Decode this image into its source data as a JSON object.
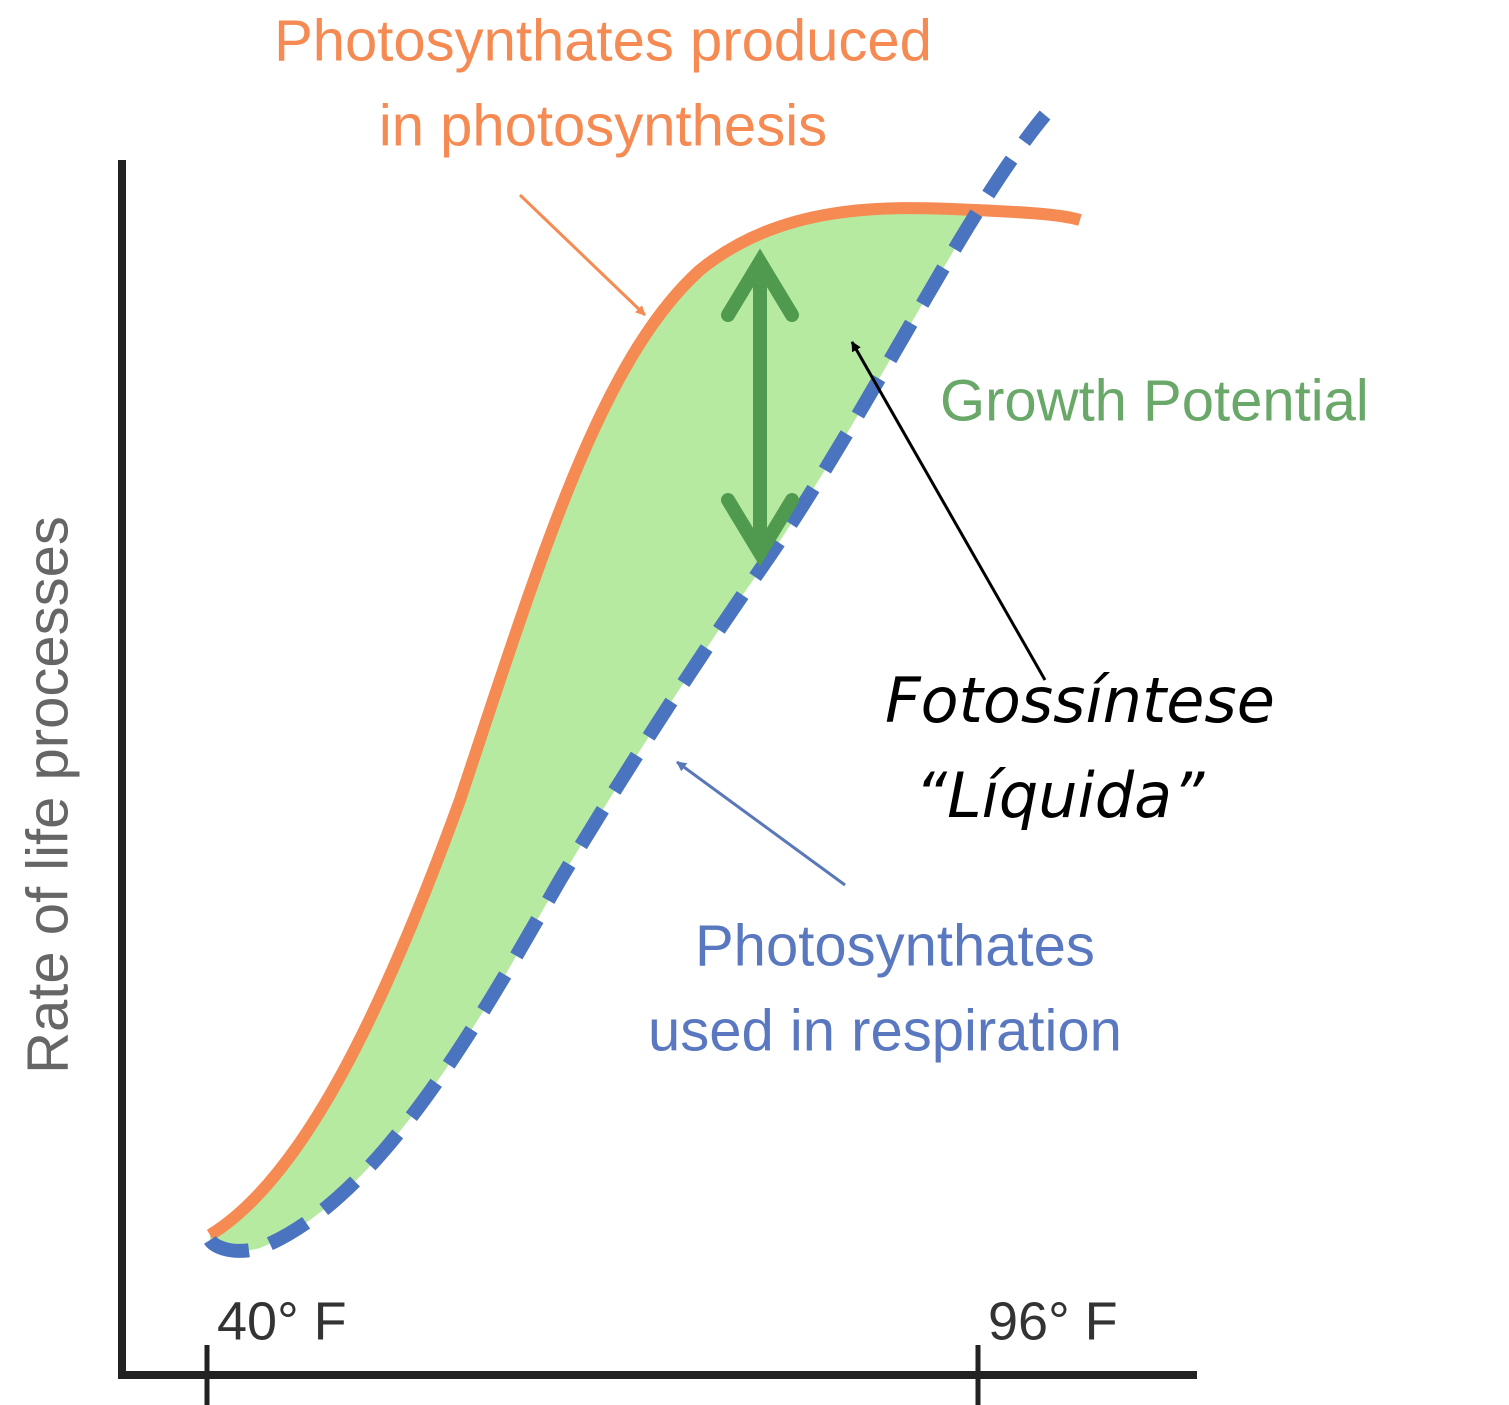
{
  "title": [
    "Photosynthates produced",
    "in photosynthesis"
  ],
  "growth_label": "Growth Potential",
  "net_label": [
    "Fotossíntese",
    "“Líquida”"
  ],
  "respiration_label": [
    "Photosynthates",
    "used in respiration"
  ],
  "y_axis_label": "Rate of life processes",
  "x_ticks": [
    "40° F",
    "96° F"
  ]
}
